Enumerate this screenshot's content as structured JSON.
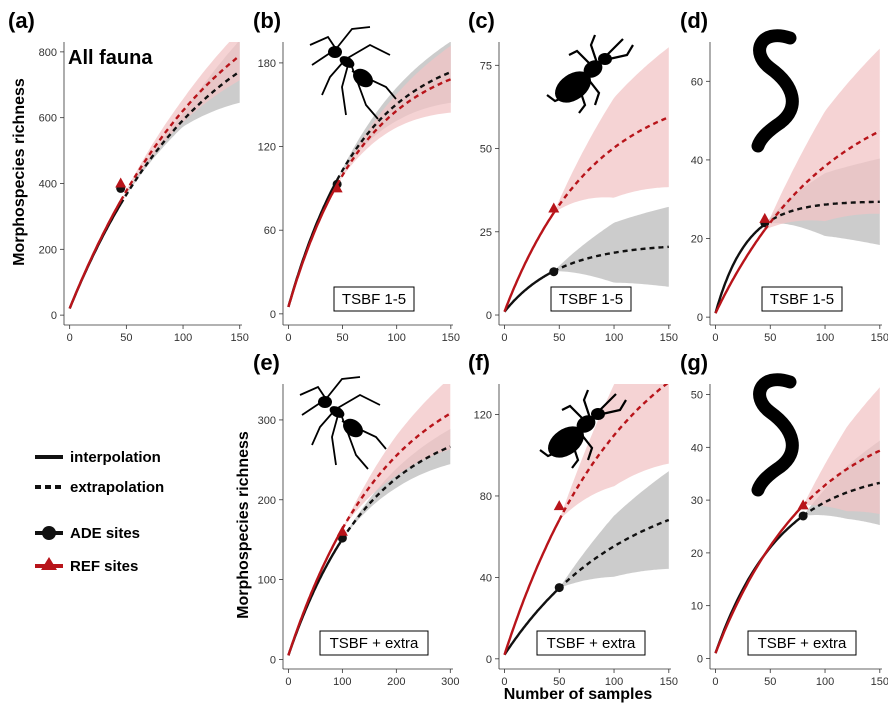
{
  "xlabel": "Number of samples",
  "ylabel": "Morphospecies richness",
  "legend": {
    "interpolation": "interpolation",
    "extrapolation": "extrapolation",
    "ade": "ADE sites",
    "ref": "REF sites"
  },
  "colors": {
    "ade": "#111111",
    "ref": "#b8141a",
    "ade_band": "#c9c9c9",
    "ref_band": "#f2c4c6"
  },
  "icons": [
    "ant-silhouette-icon",
    "beetle-silhouette-icon",
    "earthworm-silhouette-icon"
  ],
  "chart_data": [
    {
      "id": "a",
      "type": "line",
      "panel_label": "(a)",
      "inner_label": "All fauna",
      "box_label": "",
      "icon": "",
      "xticks": [
        0,
        50,
        100,
        150
      ],
      "yticks": [
        0,
        200,
        400,
        600,
        800
      ],
      "xlim": [
        -5,
        152
      ],
      "ylim": [
        -30,
        830
      ],
      "series": [
        {
          "name": "ADE sites",
          "n_obs": 45,
          "obs_richness": 385,
          "start": 20,
          "asymptote": 1020,
          "rate": 0.0085,
          "ci": [
            [
              45,
              0
            ],
            [
              100,
              20
            ],
            [
              150,
              95
            ]
          ]
        },
        {
          "name": "REF sites",
          "n_obs": 45,
          "obs_richness": 400,
          "start": 20,
          "asymptote": 1150,
          "rate": 0.0076,
          "ci": [
            [
              45,
              0
            ],
            [
              100,
              35
            ],
            [
              150,
              75
            ]
          ]
        }
      ]
    },
    {
      "id": "b",
      "type": "line",
      "panel_label": "(b)",
      "inner_label": "",
      "box_label": "TSBF 1-5",
      "icon": "ant-silhouette-icon",
      "xticks": [
        0,
        50,
        100,
        150
      ],
      "yticks": [
        0,
        60,
        120,
        180
      ],
      "xlim": [
        -5,
        152
      ],
      "ylim": [
        -8,
        195
      ],
      "series": [
        {
          "name": "ADE sites",
          "n_obs": 45,
          "obs_richness": 93,
          "start": 5,
          "asymptote": 195,
          "rate": 0.0145,
          "ci": [
            [
              45,
              0
            ],
            [
              100,
              12
            ],
            [
              150,
              22
            ]
          ]
        },
        {
          "name": "REF sites",
          "n_obs": 45,
          "obs_richness": 90,
          "start": 5,
          "asymptote": 190,
          "rate": 0.0143,
          "ci": [
            [
              45,
              0
            ],
            [
              100,
              12
            ],
            [
              150,
              24
            ]
          ]
        }
      ]
    },
    {
      "id": "c",
      "type": "line",
      "panel_label": "(c)",
      "inner_label": "",
      "box_label": "TSBF 1-5",
      "icon": "beetle-silhouette-icon",
      "xticks": [
        0,
        50,
        100,
        150
      ],
      "yticks": [
        0,
        25,
        50,
        75
      ],
      "xlim": [
        -5,
        152
      ],
      "ylim": [
        -3,
        82
      ],
      "series": [
        {
          "name": "ADE sites",
          "n_obs": 45,
          "obs_richness": 13,
          "start": 1,
          "asymptote": 21.5,
          "rate": 0.02,
          "ci": [
            [
              45,
              0
            ],
            [
              100,
              9
            ],
            [
              150,
              12
            ]
          ]
        },
        {
          "name": "REF sites",
          "n_obs": 45,
          "obs_richness": 32,
          "start": 1,
          "asymptote": 70,
          "rate": 0.0125,
          "ci": [
            [
              45,
              0
            ],
            [
              100,
              15
            ],
            [
              150,
              21
            ]
          ]
        }
      ]
    },
    {
      "id": "d",
      "type": "line",
      "panel_label": "(d)",
      "inner_label": "",
      "box_label": "TSBF 1-5",
      "icon": "earthworm-silhouette-icon",
      "xticks": [
        0,
        50,
        100,
        150
      ],
      "yticks": [
        0,
        20,
        40,
        60
      ],
      "xlim": [
        -5,
        152
      ],
      "ylim": [
        -2,
        70
      ],
      "series": [
        {
          "name": "ADE sites",
          "n_obs": 45,
          "obs_richness": 24,
          "start": 1,
          "asymptote": 29.5,
          "rate": 0.035,
          "ci": [
            [
              45,
              0
            ],
            [
              100,
              8
            ],
            [
              150,
              11
            ]
          ]
        },
        {
          "name": "REF sites",
          "n_obs": 45,
          "obs_richness": 25,
          "start": 1,
          "asymptote": 62,
          "rate": 0.0095,
          "ci": [
            [
              45,
              0
            ],
            [
              100,
              14
            ],
            [
              150,
              21
            ]
          ]
        }
      ]
    },
    {
      "id": "e",
      "type": "line",
      "panel_label": "(e)",
      "inner_label": "",
      "box_label": "TSBF + extra",
      "icon": "ant-silhouette-icon",
      "xticks": [
        0,
        100,
        200,
        300
      ],
      "yticks": [
        0,
        100,
        200,
        300
      ],
      "xlim": [
        -10,
        305
      ],
      "ylim": [
        -12,
        345
      ],
      "series": [
        {
          "name": "ADE sites",
          "n_obs": 100,
          "obs_richness": 152,
          "start": 5,
          "asymptote": 310,
          "rate": 0.0065,
          "ci": [
            [
              100,
              0
            ],
            [
              200,
              12
            ],
            [
              300,
              22
            ]
          ]
        },
        {
          "name": "REF sites",
          "n_obs": 100,
          "obs_richness": 160,
          "start": 5,
          "asymptote": 380,
          "rate": 0.0055,
          "ci": [
            [
              100,
              0
            ],
            [
              200,
              25
            ],
            [
              300,
              45
            ]
          ]
        }
      ]
    },
    {
      "id": "f",
      "type": "line",
      "panel_label": "(f)",
      "inner_label": "",
      "box_label": "TSBF + extra",
      "icon": "beetle-silhouette-icon",
      "xticks": [
        0,
        50,
        100,
        150
      ],
      "yticks": [
        0,
        40,
        80,
        120
      ],
      "xlim": [
        -5,
        152
      ],
      "ylim": [
        -5,
        135
      ],
      "series": [
        {
          "name": "ADE sites",
          "n_obs": 50,
          "obs_richness": 35,
          "start": 2,
          "asymptote": 90,
          "rate": 0.0093,
          "ci": [
            [
              50,
              0
            ],
            [
              100,
              15
            ],
            [
              150,
              24
            ]
          ]
        },
        {
          "name": "REF sites",
          "n_obs": 50,
          "obs_richness": 75,
          "start": 2,
          "asymptote": 180,
          "rate": 0.0093,
          "ci": [
            [
              50,
              0
            ],
            [
              100,
              25
            ],
            [
              150,
              40
            ]
          ]
        }
      ]
    },
    {
      "id": "g",
      "type": "line",
      "panel_label": "(g)",
      "inner_label": "",
      "box_label": "TSBF + extra",
      "icon": "earthworm-silhouette-icon",
      "xticks": [
        0,
        50,
        100,
        150
      ],
      "yticks": [
        0,
        10,
        20,
        30,
        40,
        50
      ],
      "xlim": [
        -5,
        152
      ],
      "ylim": [
        -2,
        52
      ],
      "series": [
        {
          "name": "ADE sites",
          "n_obs": 80,
          "obs_richness": 27,
          "start": 1,
          "asymptote": 36,
          "rate": 0.017,
          "ci": [
            [
              80,
              0
            ],
            [
              120,
              5
            ],
            [
              150,
              8
            ]
          ]
        },
        {
          "name": "REF sites",
          "n_obs": 80,
          "obs_richness": 29,
          "start": 1,
          "asymptote": 48,
          "rate": 0.0113,
          "ci": [
            [
              80,
              0
            ],
            [
              120,
              8
            ],
            [
              150,
              12
            ]
          ]
        }
      ]
    }
  ]
}
